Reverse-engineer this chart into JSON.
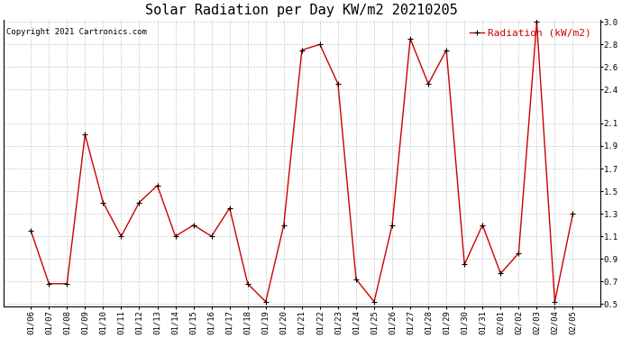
{
  "title": "Solar Radiation per Day KW/m2 20210205",
  "copyright": "Copyright 2021 Cartronics.com",
  "legend_label": "Radiation (kW/m2)",
  "dates": [
    "01/06",
    "01/07",
    "01/08",
    "01/09",
    "01/10",
    "01/11",
    "01/12",
    "01/13",
    "01/14",
    "01/15",
    "01/16",
    "01/17",
    "01/18",
    "01/19",
    "01/20",
    "01/21",
    "01/22",
    "01/23",
    "01/24",
    "01/25",
    "01/26",
    "01/27",
    "01/28",
    "01/29",
    "01/30",
    "01/31",
    "02/01",
    "02/02",
    "02/03",
    "02/04",
    "02/05"
  ],
  "values": [
    1.15,
    0.68,
    0.68,
    2.0,
    1.4,
    1.1,
    1.4,
    1.55,
    1.1,
    1.2,
    1.1,
    1.35,
    0.68,
    0.52,
    1.2,
    2.75,
    2.8,
    2.45,
    0.72,
    0.52,
    1.2,
    2.85,
    2.45,
    2.75,
    0.85,
    1.2,
    0.77,
    0.95,
    3.0,
    0.52,
    1.3
  ],
  "line_color": "#cc0000",
  "marker": "+",
  "marker_color": "#000000",
  "bg_color": "#ffffff",
  "grid_color": "#bbbbbb",
  "ylim": [
    0.48,
    3.02
  ],
  "yticks": [
    0.5,
    0.7,
    0.9,
    1.1,
    1.3,
    1.5,
    1.7,
    1.9,
    2.1,
    2.4,
    2.6,
    2.8,
    3.0
  ],
  "title_fontsize": 11,
  "copyright_fontsize": 6.5,
  "legend_fontsize": 8,
  "tick_fontsize": 6.5
}
